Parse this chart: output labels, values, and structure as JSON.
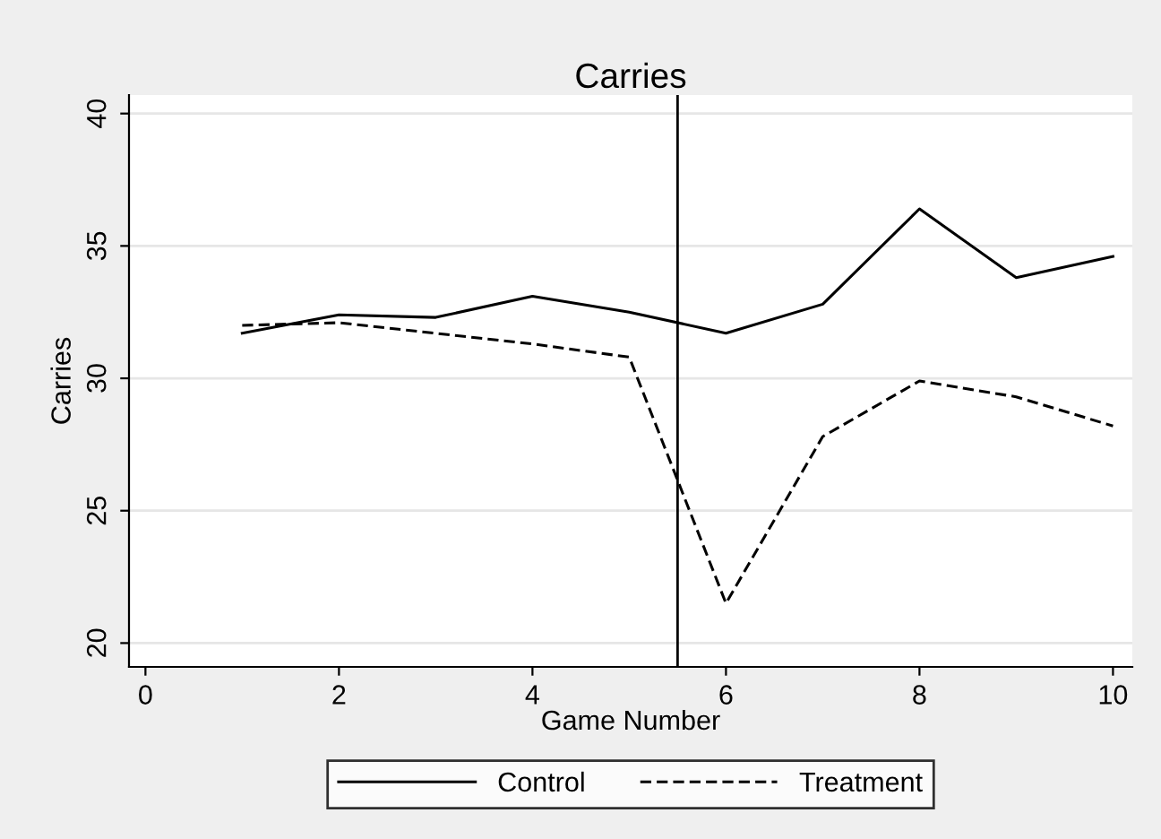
{
  "chart_data": {
    "type": "line",
    "title": "Carries",
    "xlabel": "Game Number",
    "ylabel": "Carries",
    "x": [
      1,
      2,
      3,
      4,
      5,
      6,
      7,
      8,
      9,
      10
    ],
    "series": [
      {
        "name": "Control",
        "color": "#000000",
        "line_style": "solid",
        "values": [
          31.7,
          32.4,
          32.3,
          33.1,
          32.5,
          31.7,
          32.8,
          36.4,
          33.8,
          34.6
        ]
      },
      {
        "name": "Treatment",
        "color": "#000000",
        "line_style": "dashed",
        "values": [
          32.0,
          32.1,
          31.7,
          31.3,
          30.8,
          21.5,
          27.8,
          29.9,
          29.3,
          28.2
        ]
      }
    ],
    "xlim": [
      -0.17,
      10.2
    ],
    "ylim": [
      19.1,
      40.7
    ],
    "xticks": [
      0,
      2,
      4,
      6,
      8,
      10
    ],
    "yticks": [
      20,
      25,
      30,
      35,
      40
    ],
    "ref_lines": [
      {
        "axis": "x",
        "value": 5.5,
        "color": "#000000"
      }
    ],
    "grid": "y",
    "legend": "bottom",
    "marker": "none"
  }
}
